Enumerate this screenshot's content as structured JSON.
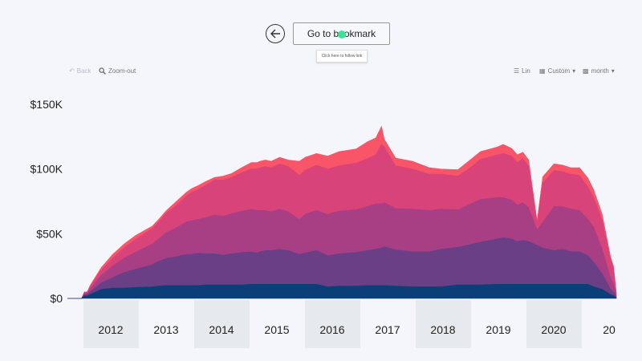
{
  "nav": {
    "bookmark_label": "Go to bookmark",
    "tooltip": "Click here to follow link"
  },
  "toolbar": {
    "back_label": "Back",
    "zoom_label": "Zoom-out",
    "scale_label": "Lin",
    "range_label": "Custom",
    "interval_label": "month"
  },
  "colors": {
    "background": "#f4f6fb",
    "series": [
      "#f95568",
      "#d8437a",
      "#a83e84",
      "#6a3f86",
      "#0b3f77"
    ]
  },
  "chart_data": {
    "type": "area",
    "stacked": true,
    "y_tick_labels": [
      "$0",
      "$50K",
      "$100K",
      "$150K"
    ],
    "y_ticks": [
      0,
      50000,
      100000,
      150000
    ],
    "ylim": [
      0,
      150000
    ],
    "x_tick_labels": [
      "2012",
      "2013",
      "2014",
      "2015",
      "2016",
      "2017",
      "2018",
      "2019",
      "2020",
      "20"
    ],
    "xlim": [
      2011.4,
      2021.1
    ],
    "x": [
      2011.4,
      2011.5,
      2011.6,
      2011.65,
      2011.7,
      2011.75,
      2011.8,
      2012.0,
      2012.2,
      2012.4,
      2012.6,
      2012.9,
      2013.0,
      2013.15,
      2013.3,
      2013.5,
      2013.6,
      2013.7,
      2013.85,
      2014.0,
      2014.15,
      2014.3,
      2014.5,
      2014.65,
      2014.75,
      2014.8,
      2014.9,
      2015.0,
      2015.15,
      2015.3,
      2015.5,
      2015.6,
      2015.8,
      2016.0,
      2016.2,
      2016.5,
      2016.7,
      2016.85,
      2016.95,
      2017.0,
      2017.2,
      2017.5,
      2017.8,
      2018.0,
      2018.3,
      2018.5,
      2018.7,
      2019.0,
      2019.1,
      2019.25,
      2019.35,
      2019.45,
      2019.55,
      2019.7,
      2019.8,
      2020.0,
      2020.15,
      2020.3,
      2020.45,
      2020.6,
      2020.7,
      2020.85,
      2021.0,
      2021.05,
      2021.1
    ],
    "series": [
      {
        "values": [
          0,
          0,
          0,
          0,
          2000,
          2000,
          3000,
          7000,
          8000,
          8000,
          8500,
          9000,
          9500,
          10000,
          10000,
          10000,
          10000,
          10000,
          10500,
          10500,
          10500,
          10500,
          10500,
          11000,
          11000,
          11000,
          11000,
          11000,
          11000,
          11000,
          11000,
          11000,
          11000,
          9000,
          9500,
          9500,
          10000,
          10000,
          10000,
          10000,
          9500,
          9000,
          9000,
          9000,
          10500,
          10500,
          10500,
          11000,
          11000,
          11000,
          11000,
          11000,
          11000,
          11000,
          11000,
          11000,
          11000,
          11000,
          11000,
          11000,
          9000,
          7000,
          3000,
          2000,
          500
        ]
      },
      {
        "values": [
          0,
          0,
          0,
          0,
          1000,
          1000,
          2000,
          5000,
          8000,
          12000,
          14000,
          17000,
          19000,
          21000,
          22000,
          24000,
          24000,
          25000,
          24000,
          24000,
          23000,
          24000,
          25000,
          25000,
          24000,
          25000,
          26000,
          26000,
          27000,
          26000,
          23000,
          24000,
          26000,
          24000,
          25000,
          26000,
          27000,
          28000,
          29000,
          30000,
          28000,
          27000,
          27000,
          29000,
          29000,
          31000,
          33000,
          35000,
          36000,
          35000,
          33000,
          34000,
          33000,
          30000,
          28000,
          26000,
          27000,
          25000,
          25000,
          22000,
          19000,
          12000,
          4000,
          3000,
          500
        ]
      },
      {
        "values": [
          0,
          0,
          0,
          0,
          1000,
          1000,
          2000,
          6000,
          9000,
          11000,
          13000,
          16000,
          17000,
          20000,
          22000,
          25000,
          26000,
          26000,
          28000,
          30000,
          30000,
          31000,
          32000,
          33000,
          33000,
          32000,
          31000,
          30000,
          31000,
          30000,
          27000,
          30000,
          31000,
          32000,
          33000,
          33000,
          34000,
          35000,
          34000,
          34000,
          32000,
          33000,
          32000,
          31000,
          29000,
          31000,
          33000,
          32000,
          31000,
          30000,
          28000,
          29000,
          26000,
          12000,
          20000,
          34000,
          33000,
          33000,
          32000,
          28000,
          27000,
          19000,
          9000,
          6000,
          1000
        ]
      },
      {
        "values": [
          0,
          0,
          0,
          0,
          1000,
          1000,
          2000,
          4000,
          6000,
          8000,
          10000,
          12000,
          13000,
          15000,
          17000,
          20000,
          22000,
          23000,
          25000,
          27000,
          28000,
          28000,
          30000,
          31000,
          32000,
          33000,
          34000,
          34000,
          35000,
          35000,
          34000,
          34000,
          35000,
          35000,
          35000,
          36000,
          37000,
          38000,
          46000,
          43000,
          33000,
          31000,
          28000,
          27000,
          26000,
          28000,
          31000,
          33000,
          34000,
          34000,
          33000,
          34000,
          32000,
          5000,
          30000,
          28000,
          27000,
          27000,
          27000,
          25000,
          23000,
          22000,
          14000,
          12000,
          2000
        ]
      },
      {
        "values": [
          0,
          0,
          0,
          0,
          0,
          0,
          1000,
          2000,
          3000,
          3000,
          3000,
          2000,
          2000,
          2000,
          3000,
          3000,
          3000,
          3000,
          3000,
          2000,
          3000,
          3000,
          4000,
          5000,
          5000,
          5000,
          5000,
          5000,
          5000,
          5000,
          11000,
          10000,
          9000,
          10000,
          11000,
          11000,
          13000,
          13000,
          14000,
          6000,
          6000,
          6000,
          5000,
          4000,
          5000,
          6000,
          6000,
          6000,
          7000,
          6000,
          6000,
          5000,
          5000,
          2000,
          5000,
          5000,
          5000,
          5000,
          6000,
          7000,
          6000,
          5000,
          2000,
          2000,
          500
        ]
      }
    ]
  }
}
